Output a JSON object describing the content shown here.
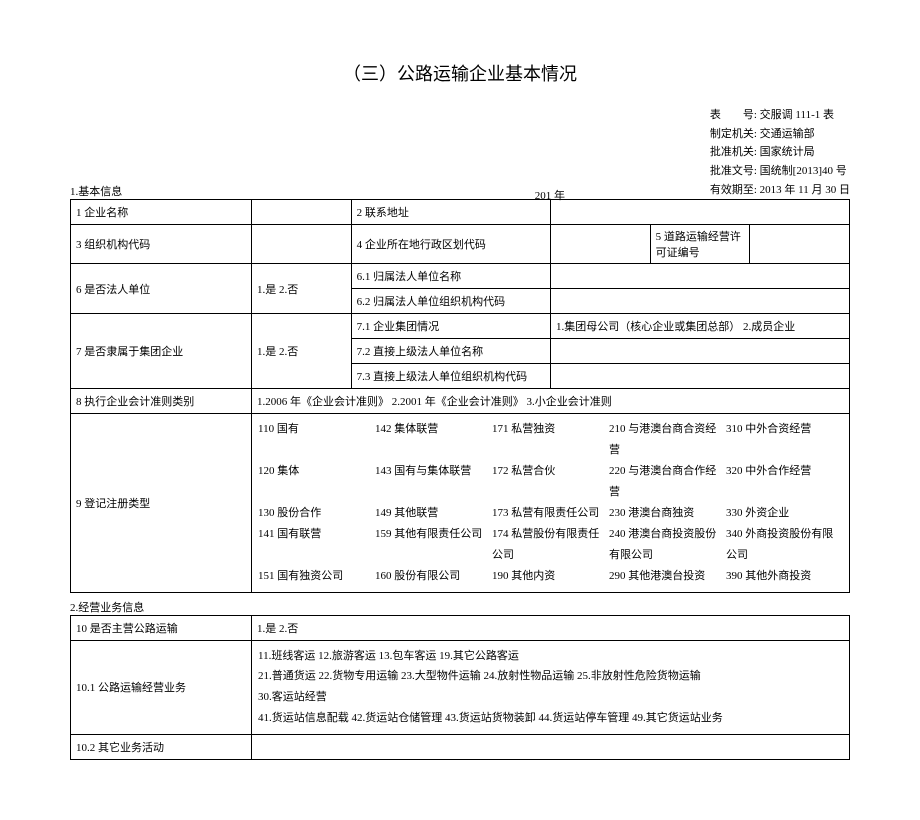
{
  "title": "（三）公路运输企业基本情况",
  "meta": {
    "table_no_label": "表　　号:",
    "table_no": "交服调 111-1 表",
    "made_by_label": "制定机关:",
    "made_by": "交通运输部",
    "approved_by_label": "批准机关:",
    "approved_by": "国家统计局",
    "approval_doc_label": "批准文号:",
    "approval_doc": "国统制[2013]40 号",
    "valid_until_label": "有效期至:",
    "valid_until": "2013 年 11 月 30 日"
  },
  "sec1": "1.基本信息",
  "year": "201  年",
  "row1": {
    "l": "1 企业名称",
    "r": "2 联系地址"
  },
  "row2": {
    "a": "3 组织机构代码",
    "b": "4 企业所在地行政区划代码",
    "c": "5 道路运输经营许可证编号"
  },
  "row3": {
    "l": "6 是否法人单位",
    "opt": "1.是  2.否",
    "a": "6.1 归属法人单位名称",
    "b": "6.2 归属法人单位组织机构代码"
  },
  "row4": {
    "l": "7 是否隶属于集团企业",
    "opt": "1.是  2.否",
    "a": "7.1 企业集团情况",
    "a_opt": "1.集团母公司（核心企业或集团总部） 2.成员企业",
    "b": "7.2 直接上级法人单位名称",
    "c": "7.3 直接上级法人单位组织机构代码"
  },
  "row5": {
    "l": "8 执行企业会计准则类别",
    "opt": "1.2006 年《企业会计准则》 2.2001 年《企业会计准则》 3.小企业会计准则"
  },
  "row6": {
    "l": "9 登记注册类型",
    "c1": [
      "110 国有",
      "120 集体",
      "130 股份合作",
      "141 国有联营",
      "151 国有独资公司"
    ],
    "c2": [
      "142 集体联营",
      "143 国有与集体联营",
      "149 其他联营",
      "159 其他有限责任公司",
      "160 股份有限公司"
    ],
    "c3": [
      "171 私营独资",
      "172 私营合伙",
      "173 私营有限责任公司",
      "174 私营股份有限责任公司",
      "190 其他内资"
    ],
    "c4": [
      "210 与港澳台商合资经营",
      "220 与港澳台商合作经营",
      "230 港澳台商独资",
      "240 港澳台商投资股份有限公司",
      "290 其他港澳台投资"
    ],
    "c5": [
      "310 中外合资经营",
      "320 中外合作经营",
      "330 外资企业",
      "340 外商投资股份有限公司",
      "390 其他外商投资"
    ]
  },
  "sec2": "2.经营业务信息",
  "row10": {
    "l": "10 是否主营公路运输",
    "opt": "1.是  2.否"
  },
  "row101": {
    "l": "10.1 公路运输经营业务",
    "lines": [
      "11.班线客运  12.旅游客运  13.包车客运  19.其它公路客运",
      "21.普通货运  22.货物专用运输  23.大型物件运输  24.放射性物品运输  25.非放射性危险货物运输",
      "30.客运站经营",
      "41.货运站信息配载  42.货运站仓储管理  43.货运站货物装卸  44.货运站停车管理  49.其它货运站业务"
    ]
  },
  "row102": {
    "l": "10.2 其它业务活动"
  }
}
